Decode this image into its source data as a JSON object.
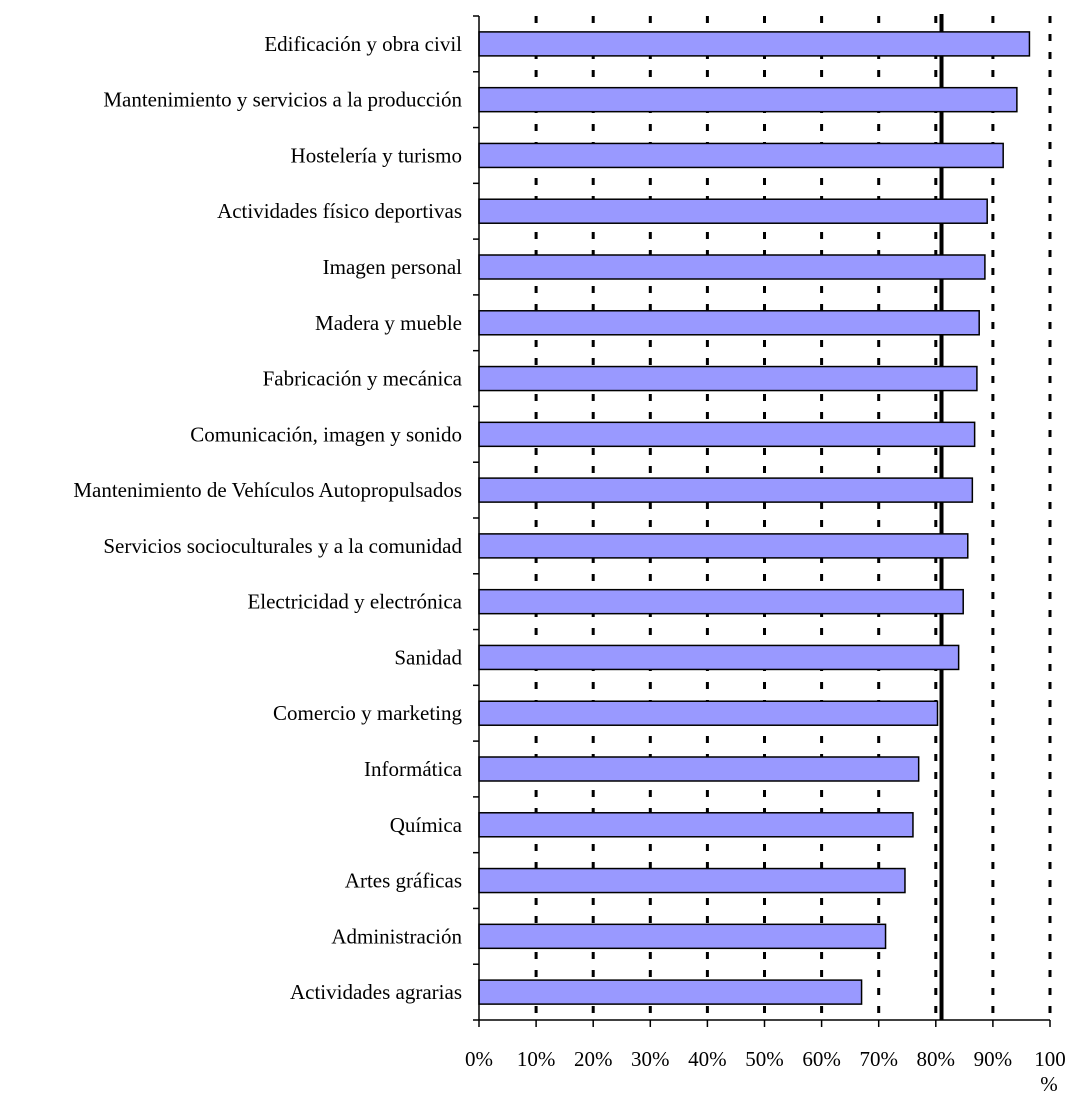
{
  "chart_data": {
    "type": "bar",
    "orientation": "horizontal",
    "categories": [
      "Edificación y obra civil",
      "Mantenimiento y servicios a la producción",
      "Hostelería y turismo",
      "Actividades físico deportivas",
      "Imagen personal",
      "Madera y mueble",
      "Fabricación y mecánica",
      "Comunicación, imagen y sonido",
      "Mantenimiento de Vehículos Autopropulsados",
      "Servicios socioculturales y a la comunidad",
      "Electricidad y electrónica",
      "Sanidad",
      "Comercio y marketing",
      "Informática",
      "Química",
      "Artes gráficas",
      "Administración",
      "Actividades agrarias"
    ],
    "values": [
      96.4,
      94.2,
      91.8,
      89.0,
      88.6,
      87.6,
      87.2,
      86.8,
      86.4,
      85.6,
      84.8,
      84.0,
      80.3,
      77.0,
      76.0,
      74.6,
      71.2,
      67.0
    ],
    "xlim": [
      0,
      100
    ],
    "xticks": [
      "0%",
      "10%",
      "20%",
      "30%",
      "40%",
      "50%",
      "60%",
      "70%",
      "80%",
      "90%",
      "100"
    ],
    "xlabel_overflow": "%",
    "reference_line": 81,
    "grid": "vertical dotted",
    "bar_color": "#9999ff",
    "bar_edge": "#000000"
  }
}
